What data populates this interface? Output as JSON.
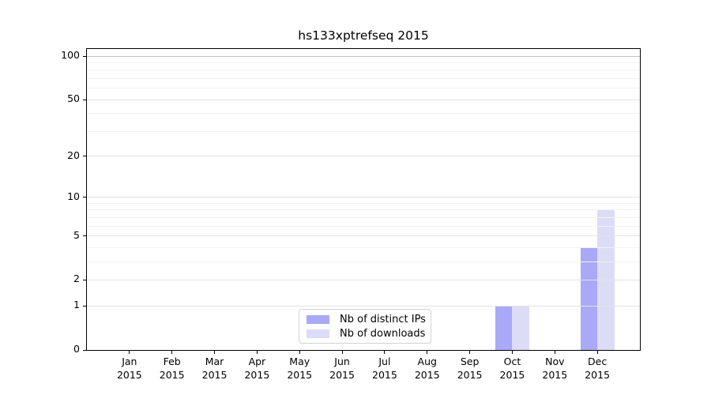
{
  "chart_data": {
    "type": "bar",
    "title": "hs133xptrefseq 2015",
    "x_tick_labels": [
      [
        "Jan",
        "2015"
      ],
      [
        "Feb",
        "2015"
      ],
      [
        "Mar",
        "2015"
      ],
      [
        "Apr",
        "2015"
      ],
      [
        "May",
        "2015"
      ],
      [
        "Jun",
        "2015"
      ],
      [
        "Jul",
        "2015"
      ],
      [
        "Aug",
        "2015"
      ],
      [
        "Sep",
        "2015"
      ],
      [
        "Oct",
        "2015"
      ],
      [
        "Nov",
        "2015"
      ],
      [
        "Dec",
        "2015"
      ]
    ],
    "series": [
      {
        "name": "Nb of distinct IPs",
        "color": "#a9a9f7",
        "values": [
          0,
          0,
          0,
          0,
          0,
          0,
          0,
          0,
          0,
          1,
          0,
          4
        ]
      },
      {
        "name": "Nb of downloads",
        "color": "#dcdcf7",
        "values": [
          0,
          0,
          0,
          0,
          0,
          0,
          0,
          0,
          0,
          1,
          0,
          8
        ]
      }
    ],
    "y_axis": {
      "scale": "log10(1+v)",
      "ylim": [
        0,
        100
      ],
      "major_ticks": [
        0,
        1,
        2,
        5,
        10,
        20,
        50,
        100
      ],
      "minor_gridlines": [
        3,
        4,
        6,
        7,
        8,
        9,
        30,
        40,
        60,
        70,
        80,
        90
      ]
    },
    "grid": true,
    "legend_position": "lower center"
  },
  "colors": {
    "background": "#ffffff",
    "spine": "#000000",
    "major_grid": "#e3e3e3",
    "minor_grid": "#f1f1f1",
    "top_grid": "#c4c4c4",
    "legend_border": "#d2d2d2",
    "text": "#000000"
  }
}
